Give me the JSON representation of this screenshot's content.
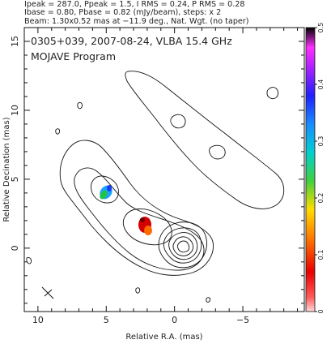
{
  "header": {
    "line1": "Ipeak = 287.0, Ppeak = 1.5, I RMS = 0.24, P RMS = 0.28",
    "line2": "Ibase = 0.80, Pbase = 0.82 (mJy/beam), steps: x 2",
    "line3": "Beam: 1.30x0.52 mas at −11.9 deg., Nat. Wgt. (no taper)"
  },
  "chart_data": {
    "type": "contour",
    "title": "0305+039, 2007-08-24, VLBA 15.4 GHz",
    "subtitle": "MOJAVE Program",
    "xlabel": "Relative R.A. (mas)",
    "ylabel": "Relative Decination (mas)",
    "xlim": [
      11,
      -9.5
    ],
    "ylim": [
      -4.6,
      16
    ],
    "x_ticks": [
      {
        "value": 10,
        "label": "10"
      },
      {
        "value": 5,
        "label": "5"
      },
      {
        "value": 0,
        "label": "0"
      },
      {
        "value": -5,
        "label": "−5"
      }
    ],
    "y_ticks": [
      {
        "value": 0,
        "label": "0"
      },
      {
        "value": 5,
        "label": "5"
      },
      {
        "value": 10,
        "label": "10"
      },
      {
        "value": 15,
        "label": "15"
      }
    ],
    "contour_base_mJy_per_beam": 0.8,
    "contour_step_factor": 2,
    "core_position": [
      0,
      0
    ],
    "colorbar": {
      "min": 0,
      "max": 0.5,
      "ticks": [
        {
          "value": 0,
          "label": "0"
        },
        {
          "value": 0.1,
          "label": "0.1"
        },
        {
          "value": 0.2,
          "label": "0.2"
        },
        {
          "value": 0.3,
          "label": "0.3"
        },
        {
          "value": 0.4,
          "label": "0.4"
        },
        {
          "value": 0.5,
          "label": "0.5"
        }
      ]
    },
    "polarization_patches": [
      {
        "x": 5.2,
        "y": 4.0,
        "fraction": 0.28
      },
      {
        "x": 2.7,
        "y": 1.7,
        "fraction": 0.03
      }
    ],
    "colors": {
      "frame": "#111111",
      "contour": "#111111",
      "color_low": "#ff0000",
      "color_high": "#000000"
    }
  }
}
